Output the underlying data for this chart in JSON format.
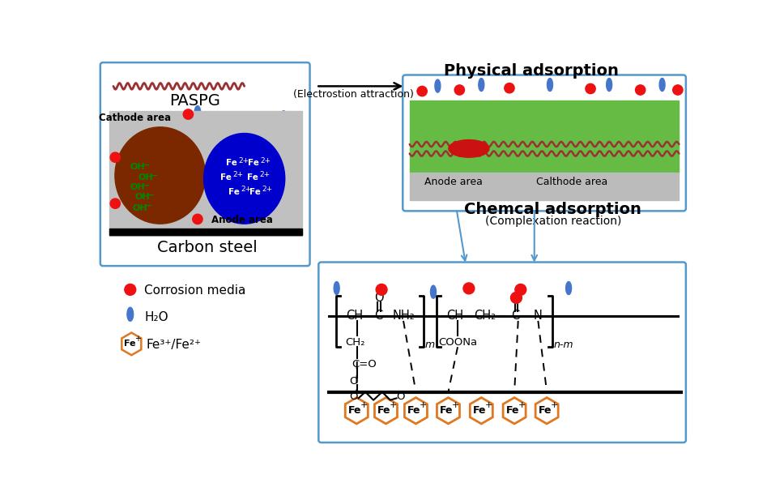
{
  "bg_color": "#ffffff",
  "blue_border": "#5599cc",
  "green_color": "#66bb44",
  "gray_steel": "#c0c0c0",
  "orange_fe": "#e07820",
  "red_media": "#ee1111",
  "blue_water": "#4477cc",
  "brown_cathode": "#6b2d00",
  "blue_anode": "#0000cc",
  "green_oh": "#008800",
  "wavy_color": "#993333",
  "paspg_label": "PASPG",
  "carbon_steel_label": "Carbon steel",
  "cathode_label": "Cathode area",
  "anode_label": "Anode area",
  "phys_label": "Physical adsorption",
  "electro_label": "(Electrostion attraction)",
  "chem_label": "Chemcal adsorption",
  "complex_label": "(Complexation reaction)",
  "anode_area_label": "Anode area",
  "calthode_label": "Calthode area",
  "corrosion_label": "Corrosion media",
  "water_label": "H₂O",
  "fe_label": "Fe³⁺/Fe²⁺"
}
